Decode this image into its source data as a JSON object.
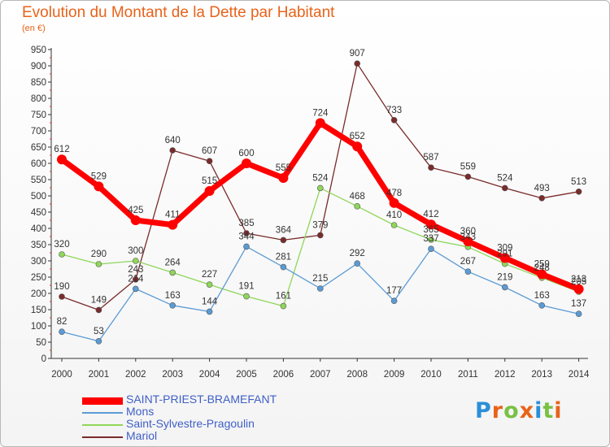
{
  "title": "Evolution du Montant de la Dette par Habitant",
  "subtitle": "(en €)",
  "logo": {
    "text": "Proxiti",
    "letter_colors": [
      "#2a8fd8",
      "#e8631a",
      "#79c143",
      "#e8631a",
      "#2a8fd8",
      "#79c143",
      "#e8631a"
    ]
  },
  "chart_data": {
    "type": "line",
    "x": [
      2000,
      2001,
      2002,
      2003,
      2004,
      2005,
      2006,
      2007,
      2008,
      2009,
      2010,
      2011,
      2012,
      2013,
      2014
    ],
    "ylim": [
      0,
      950
    ],
    "ytick_step": 50,
    "yticks": [
      0,
      50,
      100,
      150,
      200,
      250,
      300,
      350,
      400,
      450,
      500,
      550,
      600,
      650,
      700,
      750,
      800,
      850,
      900,
      950
    ],
    "grid": false,
    "legend_position": "bottom-left",
    "series": [
      {
        "name": "Mariol",
        "color": "#7a2b2b",
        "values": [
          190,
          149,
          243,
          640,
          607,
          385,
          364,
          379,
          907,
          733,
          587,
          559,
          524,
          493,
          513
        ]
      },
      {
        "name": "Saint-Sylvestre-Pragoulin",
        "color": "#8fd65a",
        "values": [
          320,
          290,
          300,
          264,
          227,
          191,
          161,
          524,
          468,
          410,
          365,
          343,
          291,
          248,
          205
        ]
      },
      {
        "name": "Mons",
        "color": "#5b9bd5",
        "values": [
          82,
          53,
          214,
          163,
          144,
          344,
          281,
          215,
          292,
          177,
          337,
          267,
          219,
          163,
          137
        ]
      },
      {
        "name": "SAINT-PRIEST-BRAMEFANT",
        "color": "#ff0000",
        "values": [
          612,
          529,
          425,
          411,
          515,
          600,
          555,
          724,
          652,
          478,
          412,
          360,
          309,
          259,
          213
        ]
      }
    ],
    "legend_order": [
      "SAINT-PRIEST-BRAMEFANT",
      "Mons",
      "Saint-Sylvestre-Pragoulin",
      "Mariol"
    ]
  }
}
